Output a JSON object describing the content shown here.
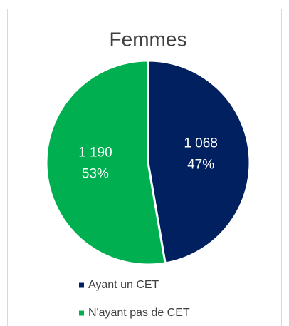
{
  "chart_data": {
    "type": "pie",
    "title": "Femmes",
    "categories": [
      "Ayant un CET",
      "N'ayant pas de CET"
    ],
    "values": [
      1068,
      1190
    ],
    "value_labels": [
      "1 068",
      "1 190"
    ],
    "percentages": [
      47,
      53
    ],
    "percentage_labels": [
      "47%",
      "53%"
    ],
    "colors": [
      "#002060",
      "#00b050"
    ],
    "legend": "bottom"
  }
}
